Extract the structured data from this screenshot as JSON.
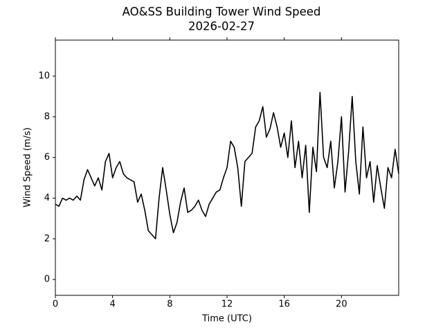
{
  "chart_data": {
    "type": "line",
    "title": "AO&SS Building Tower Wind Speed",
    "subtitle": "2026-02-27",
    "x_label": "Time (UTC)",
    "y_label": "Wind Speed (m/s)",
    "xlim": [
      0,
      24
    ],
    "ylim": [
      -0.78,
      11.77
    ],
    "xticks": [
      0,
      4,
      8,
      12,
      16,
      20
    ],
    "yticks": [
      0,
      2,
      4,
      6,
      8,
      10
    ],
    "series": [
      {
        "color": "#000000",
        "x": [
          0,
          0.25,
          0.5,
          0.75,
          1,
          1.25,
          1.5,
          1.75,
          2,
          2.25,
          2.5,
          2.75,
          3,
          3.25,
          3.5,
          3.75,
          4,
          4.25,
          4.5,
          4.75,
          5,
          5.25,
          5.5,
          5.75,
          6,
          6.25,
          6.5,
          6.75,
          7,
          7.25,
          7.5,
          7.75,
          8,
          8.25,
          8.5,
          8.75,
          9,
          9.25,
          9.5,
          9.75,
          10,
          10.25,
          10.5,
          10.75,
          11,
          11.25,
          11.5,
          11.75,
          12,
          12.25,
          12.5,
          12.75,
          13,
          13.25,
          13.5,
          13.75,
          14,
          14.25,
          14.5,
          14.75,
          15,
          15.25,
          15.5,
          15.75,
          16,
          16.25,
          16.5,
          16.75,
          17,
          17.25,
          17.5,
          17.75,
          18,
          18.25,
          18.5,
          18.75,
          19,
          19.25,
          19.5,
          19.75,
          20,
          20.25,
          20.5,
          20.75,
          21,
          21.25,
          21.5,
          21.75,
          22,
          22.25,
          22.5,
          22.75,
          23,
          23.25,
          23.5,
          23.75,
          24
        ],
        "values": [
          3.7,
          3.6,
          4.0,
          3.9,
          4.0,
          3.9,
          4.1,
          3.9,
          4.9,
          5.4,
          5.0,
          4.6,
          5.0,
          4.4,
          5.8,
          6.2,
          5.0,
          5.5,
          5.8,
          5.2,
          5.0,
          4.9,
          4.8,
          3.8,
          4.2,
          3.4,
          2.4,
          2.2,
          2.0,
          4.0,
          5.5,
          4.4,
          3.2,
          2.3,
          2.8,
          3.8,
          4.5,
          3.3,
          3.4,
          3.6,
          3.9,
          3.4,
          3.1,
          3.7,
          4.0,
          4.3,
          4.4,
          5.0,
          5.5,
          6.8,
          6.5,
          5.5,
          3.6,
          5.8,
          6.0,
          6.2,
          7.5,
          7.8,
          8.5,
          7.0,
          7.4,
          8.2,
          7.5,
          6.5,
          7.2,
          6.0,
          7.8,
          5.5,
          6.8,
          5.0,
          6.6,
          3.3,
          6.5,
          5.3,
          9.2,
          6.0,
          5.5,
          6.8,
          4.5,
          5.8,
          8.0,
          4.3,
          6.3,
          9.0,
          5.8,
          4.2,
          7.5,
          5.0,
          5.8,
          3.8,
          5.6,
          4.5,
          3.5,
          5.5,
          5.0,
          6.4,
          5.2
        ]
      }
    ]
  }
}
